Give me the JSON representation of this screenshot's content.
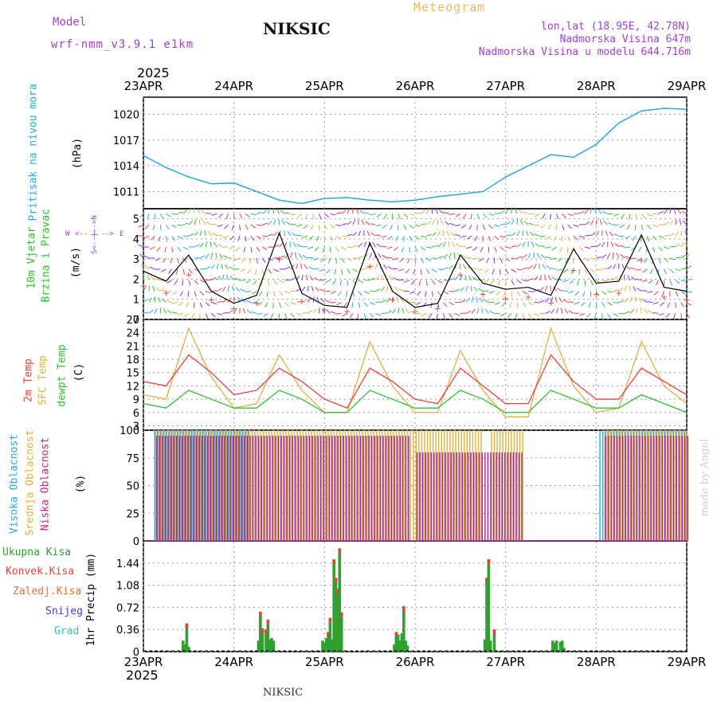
{
  "header": {
    "model_label": "Model",
    "model_version": "wrf-nmm_v3.9.1  e1km",
    "station": "NIKSIC",
    "meteogram_label": "Meteogram",
    "lonlat": "lon,lat (18.95E, 42.78N)",
    "elevation": "Nadmorska Visina 647m",
    "model_elevation": "Nadmorska Visina u modelu 644.716m",
    "year_top": "2025",
    "year_bottom": "2025"
  },
  "footer": {
    "station": "NIKSIC",
    "credit": "made by Angel"
  },
  "date_ticks": [
    "23APR",
    "24APR",
    "25APR",
    "26APR",
    "27APR",
    "28APR",
    "29APR"
  ],
  "colors": {
    "pressure": "#2aa8e0",
    "temp2m": "#e84040",
    "sfc": "#e0b040",
    "dew": "#30c030",
    "conv": "#e84040",
    "total": "#30a030",
    "high": "#2aa8e0",
    "mid": "#e0b040",
    "low": "#a020a0",
    "wind": "#000000",
    "gust": "#e84040"
  },
  "panels": {
    "pressure": {
      "ylabel": "Pritisak na nivou mora",
      "unit": "(hPa)",
      "yticks": [
        "1011",
        "1014",
        "1017",
        "1020"
      ]
    },
    "wind": {
      "ylabel1": "10m Vjetar",
      "ylabel2": "Brzina i Pravac",
      "unit": "(m/s)",
      "yticks": [
        "0",
        "1",
        "2",
        "3",
        "4",
        "5"
      ],
      "compass_w": "W",
      "compass_e": "E",
      "compass_arrows": "<-- | -->",
      "compass_vert": "S<--|-->N"
    },
    "temp": {
      "ylabel1": "2m Temp",
      "ylabel2": "SFC Temp",
      "ylabel3": "dewpt Temp",
      "unit": "(C)",
      "yticks": [
        "3",
        "6",
        "9",
        "12",
        "15",
        "18",
        "21",
        "24",
        "27"
      ]
    },
    "cloud": {
      "ylabel1": "Visoka Oblacnost",
      "ylabel2": "Srednja Oblacnost",
      "ylabel3": "Niska Oblacnost",
      "unit": "(%)",
      "yticks": [
        "0",
        "25",
        "50",
        "75",
        "100"
      ]
    },
    "precip": {
      "leg_total": "Ukupna Kisa",
      "leg_conv": "Konvek.Kisa",
      "leg_frozen": "Zaledj.Kisa",
      "leg_snow": "Snijeg",
      "leg_hail": "Grad",
      "unit": "1hr Precip (mm)",
      "yticks": [
        "0",
        "0.36",
        "0.72",
        "1.08",
        "1.44"
      ]
    }
  },
  "chart_data": [
    {
      "type": "line",
      "title": "Pritisak na nivou mora",
      "ylabel": "(hPa)",
      "ylim": [
        1009,
        1022
      ],
      "x_hours": [
        0,
        6,
        12,
        18,
        24,
        30,
        36,
        42,
        48,
        54,
        60,
        66,
        72,
        78,
        84,
        90,
        96,
        102,
        108,
        114,
        120,
        126,
        132,
        138,
        144
      ],
      "series": [
        {
          "name": "Pritisak",
          "values": [
            1015.2,
            1013.8,
            1012.7,
            1011.9,
            1012.0,
            1011.0,
            1010.0,
            1009.6,
            1010.2,
            1010.3,
            1010.0,
            1009.8,
            1010.0,
            1010.4,
            1010.7,
            1011.0,
            1012.7,
            1014.0,
            1015.3,
            1015.0,
            1016.5,
            1019.0,
            1020.4,
            1020.7,
            1020.6
          ]
        }
      ]
    },
    {
      "type": "line",
      "title": "10m Vjetar Brzina i Pravac",
      "ylabel": "(m/s)",
      "ylim": [
        0,
        5.5
      ],
      "x_hours": [
        0,
        6,
        12,
        18,
        24,
        30,
        36,
        42,
        48,
        54,
        60,
        66,
        72,
        78,
        84,
        90,
        96,
        102,
        108,
        114,
        120,
        126,
        132,
        138,
        144
      ],
      "series": [
        {
          "name": "Brzina",
          "values": [
            2.4,
            1.9,
            3.2,
            1.4,
            0.8,
            1.2,
            4.3,
            1.3,
            0.7,
            0.6,
            3.8,
            1.4,
            0.6,
            0.8,
            3.2,
            1.8,
            1.5,
            1.6,
            1.2,
            3.5,
            1.8,
            1.9,
            4.2,
            1.6,
            1.4
          ]
        }
      ]
    },
    {
      "type": "line",
      "title": "Temp",
      "ylabel": "(C)",
      "ylim": [
        2,
        27
      ],
      "x_hours": [
        0,
        6,
        12,
        18,
        24,
        30,
        36,
        42,
        48,
        54,
        60,
        66,
        72,
        78,
        84,
        90,
        96,
        102,
        108,
        114,
        120,
        126,
        132,
        138,
        144
      ],
      "series": [
        {
          "name": "2m Temp",
          "values": [
            13,
            12,
            19,
            15,
            10,
            11,
            16,
            13,
            9,
            7,
            16,
            13,
            9,
            8,
            16,
            12,
            8,
            8,
            19,
            13,
            9,
            9,
            16,
            13,
            10
          ]
        },
        {
          "name": "SFC Temp",
          "values": [
            10,
            9,
            25,
            14,
            7,
            8,
            19,
            11,
            6,
            6,
            22,
            12,
            6,
            6,
            20,
            11,
            5,
            5,
            25,
            12,
            6,
            7,
            22,
            12,
            8
          ]
        },
        {
          "name": "dewpt Temp",
          "values": [
            8,
            7,
            11,
            9,
            7,
            7,
            11,
            9,
            6,
            6,
            11,
            9,
            7,
            7,
            11,
            9,
            6,
            6,
            11,
            9,
            7,
            7,
            10,
            8,
            6
          ]
        }
      ]
    },
    {
      "type": "bar",
      "title": "Oblacnost",
      "ylabel": "(%)",
      "ylim": [
        0,
        100
      ],
      "series": [
        {
          "name": "Visoka Oblacnost",
          "segments": [
            [
              3,
              28,
              100
            ],
            [
              60,
              90,
              0
            ],
            [
              92,
              103,
              0
            ],
            [
              110,
              120,
              0
            ],
            [
              121,
              144,
              100
            ]
          ]
        },
        {
          "name": "Srednja Oblacnost",
          "segments": [
            [
              3,
              75,
              100
            ],
            [
              75,
              90,
              100
            ],
            [
              92,
              101,
              100
            ],
            [
              110,
              120,
              0
            ],
            [
              122,
              144,
              100
            ]
          ]
        },
        {
          "name": "Niska Oblacnost",
          "segments": [
            [
              3,
              70,
              95
            ],
            [
              72,
              100,
              80
            ],
            [
              110,
              120,
              0
            ],
            [
              122,
              144,
              95
            ]
          ]
        }
      ]
    },
    {
      "type": "bar",
      "title": "1hr Precip",
      "ylabel": "(mm)",
      "ylim": [
        0,
        1.8
      ],
      "bars": [
        [
          10.5,
          0.18
        ],
        [
          11,
          0.12
        ],
        [
          11.5,
          0.46
        ],
        [
          12,
          0.08
        ],
        [
          30.5,
          0.18
        ],
        [
          31,
          0.65
        ],
        [
          31.5,
          0.38
        ],
        [
          32.5,
          0.36
        ],
        [
          33,
          0.52
        ],
        [
          33.5,
          0.2
        ],
        [
          34,
          0.22
        ],
        [
          34.5,
          0.18
        ],
        [
          47.5,
          0.18
        ],
        [
          48,
          0.14
        ],
        [
          48.5,
          0.22
        ],
        [
          49,
          0.32
        ],
        [
          49.5,
          0.55
        ],
        [
          50,
          0.2
        ],
        [
          50.5,
          1.5
        ],
        [
          51,
          1.2
        ],
        [
          51.5,
          1.02
        ],
        [
          52,
          1.68
        ],
        [
          52.5,
          0.64
        ],
        [
          53,
          0.02
        ],
        [
          66.5,
          0.12
        ],
        [
          67,
          0.32
        ],
        [
          67.5,
          0.28
        ],
        [
          68,
          0.18
        ],
        [
          68.5,
          0.3
        ],
        [
          69,
          0.74
        ],
        [
          69.5,
          0.18
        ],
        [
          70,
          0.1
        ],
        [
          90.5,
          0.2
        ],
        [
          91,
          1.2
        ],
        [
          91.5,
          1.5
        ],
        [
          92,
          0.18
        ],
        [
          93,
          0.36
        ],
        [
          108.5,
          0.18
        ],
        [
          109,
          0.14
        ],
        [
          109.5,
          0.18
        ],
        [
          110.5,
          0.16
        ],
        [
          111,
          0.18
        ],
        [
          111.5,
          0.06
        ]
      ]
    }
  ]
}
